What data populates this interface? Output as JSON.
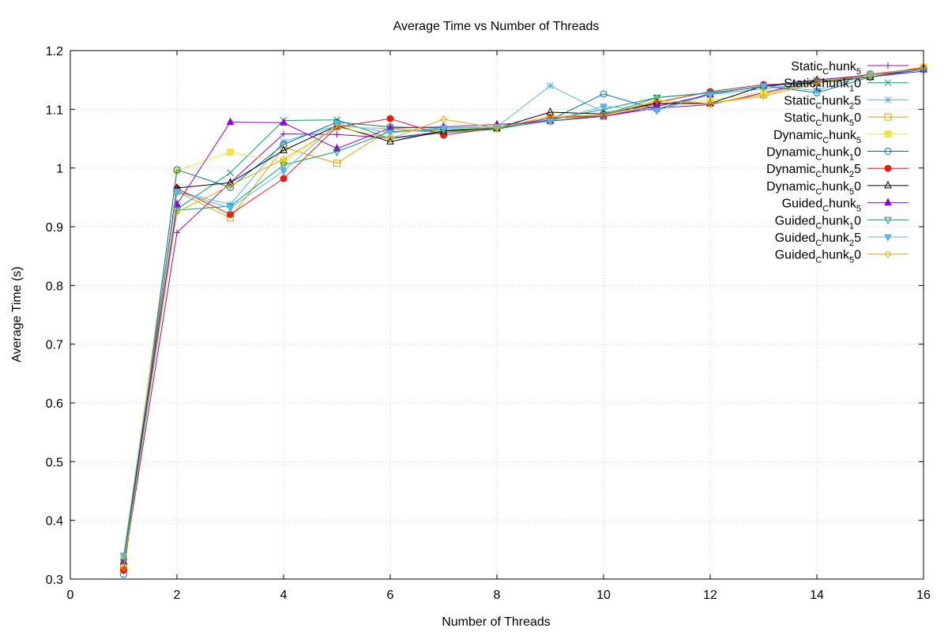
{
  "chart_data": {
    "type": "line",
    "title": "Average Time vs Number of Threads",
    "xlabel": "Number of Threads",
    "ylabel": "Average Time (s)",
    "xlim": [
      0,
      16
    ],
    "ylim": [
      0.3,
      1.2
    ],
    "xticks": [
      0,
      2,
      4,
      6,
      8,
      10,
      12,
      14,
      16
    ],
    "yticks": [
      0.3,
      0.4,
      0.5,
      0.6,
      0.7,
      0.8,
      0.9,
      1,
      1.1,
      1.2
    ],
    "grid": true,
    "legend_position": "top-right",
    "x": [
      1,
      2,
      3,
      4,
      5,
      6,
      7,
      8,
      9,
      10,
      11,
      12,
      13,
      14,
      15,
      16
    ],
    "series": [
      {
        "name": "Static_chunk_5",
        "legend_main": "Static",
        "legend_sub": "C",
        "legend_mid": "hunk",
        "legend_sub2": "5",
        "legend_tail": "",
        "color": "#9400d3",
        "marker": "plus",
        "values": [
          0.32,
          0.89,
          0.975,
          1.058,
          1.057,
          1.051,
          1.062,
          1.068,
          1.08,
          1.088,
          1.102,
          1.108,
          1.128,
          1.148,
          1.155,
          1.165
        ]
      },
      {
        "name": "Static_chunk_10",
        "legend_main": "Static",
        "legend_sub": "C",
        "legend_mid": "hunk",
        "legend_sub2": "1",
        "legend_tail": "0",
        "color": "#009e73",
        "marker": "x",
        "values": [
          0.33,
          0.93,
          0.992,
          1.081,
          1.082,
          1.05,
          1.06,
          1.066,
          1.082,
          1.1,
          1.12,
          1.128,
          1.138,
          1.15,
          1.158,
          1.168
        ]
      },
      {
        "name": "Static_chunk_25",
        "legend_main": "Static",
        "legend_sub": "C",
        "legend_mid": "hunk",
        "legend_sub2": "2",
        "legend_tail": "5",
        "color": "#56b4e9",
        "marker": "star",
        "values": [
          0.34,
          0.96,
          0.938,
          1.045,
          1.072,
          1.066,
          1.06,
          1.07,
          1.14,
          1.095,
          1.105,
          1.125,
          1.135,
          1.145,
          1.16,
          1.168
        ]
      },
      {
        "name": "Static_chunk_50",
        "legend_main": "Static",
        "legend_sub": "C",
        "legend_mid": "hunk",
        "legend_sub2": "5",
        "legend_tail": "0",
        "color": "#e69f00",
        "marker": "square",
        "values": [
          0.32,
          0.96,
          0.915,
          1.035,
          1.008,
          1.066,
          1.062,
          1.068,
          1.085,
          1.088,
          1.108,
          1.11,
          1.125,
          1.148,
          1.155,
          1.17
        ]
      },
      {
        "name": "Dynamic_chunk_5",
        "legend_main": "Dynamic",
        "legend_sub": "C",
        "legend_mid": "hunk",
        "legend_sub2": "5",
        "legend_tail": "",
        "color": "#f0e442",
        "marker": "square-filled",
        "values": [
          0.335,
          0.995,
          1.027,
          1.01,
          1.07,
          1.068,
          1.065,
          1.07,
          1.08,
          1.088,
          1.11,
          1.115,
          1.13,
          1.15,
          1.158,
          1.172
        ]
      },
      {
        "name": "Dynamic_chunk_10",
        "legend_main": "Dynamic",
        "legend_sub": "C",
        "legend_mid": "hunk",
        "legend_sub2": "1",
        "legend_tail": "0",
        "color": "#0072b2",
        "marker": "circle",
        "values": [
          0.308,
          0.997,
          0.967,
          1.04,
          1.078,
          1.07,
          1.068,
          1.07,
          1.082,
          1.126,
          1.1,
          1.127,
          1.14,
          1.128,
          1.155,
          1.168
        ]
      },
      {
        "name": "Dynamic_chunk_25",
        "legend_main": "Dynamic",
        "legend_sub": "C",
        "legend_mid": "hunk",
        "legend_sub2": "2",
        "legend_tail": "5",
        "color": "#e51e10",
        "marker": "circle-filled",
        "values": [
          0.315,
          0.965,
          0.921,
          0.982,
          1.07,
          1.084,
          1.056,
          1.068,
          1.085,
          1.09,
          1.112,
          1.13,
          1.142,
          1.145,
          1.16,
          1.17
        ]
      },
      {
        "name": "Dynamic_chunk_50",
        "legend_main": "Dynamic",
        "legend_sub": "C",
        "legend_mid": "hunk",
        "legend_sub2": "5",
        "legend_tail": "0",
        "color": "#000000",
        "marker": "triangle",
        "values": [
          0.33,
          0.966,
          0.975,
          1.03,
          1.072,
          1.045,
          1.063,
          1.068,
          1.095,
          1.092,
          1.11,
          1.11,
          1.14,
          1.145,
          1.155,
          1.168
        ]
      },
      {
        "name": "Guided_chunk_5",
        "legend_main": "Guided",
        "legend_sub": "C",
        "legend_mid": "hunk",
        "legend_sub2": "5",
        "legend_tail": "",
        "color": "#9400d3",
        "marker": "triangle-filled",
        "values": [
          0.33,
          0.938,
          1.078,
          1.077,
          1.033,
          1.068,
          1.07,
          1.074,
          1.08,
          1.088,
          1.105,
          1.125,
          1.14,
          1.15,
          1.158,
          1.168
        ]
      },
      {
        "name": "Guided_chunk_10",
        "legend_main": "Guided",
        "legend_sub": "C",
        "legend_mid": "hunk",
        "legend_sub2": "1",
        "legend_tail": "0",
        "color": "#009e73",
        "marker": "triangle-down",
        "values": [
          0.33,
          0.928,
          0.935,
          1.005,
          1.028,
          1.062,
          1.065,
          1.068,
          1.08,
          1.09,
          1.12,
          1.128,
          1.138,
          1.148,
          1.155,
          1.168
        ]
      },
      {
        "name": "Guided_chunk_25",
        "legend_main": "Guided",
        "legend_sub": "C",
        "legend_mid": "hunk",
        "legend_sub2": "2",
        "legend_tail": "5",
        "color": "#56b4e9",
        "marker": "triangle-down-filled",
        "values": [
          0.34,
          0.96,
          0.932,
          0.995,
          1.075,
          1.06,
          1.068,
          1.07,
          1.08,
          1.105,
          1.098,
          1.125,
          1.14,
          1.132,
          1.16,
          1.168
        ]
      },
      {
        "name": "Guided_chunk_50",
        "legend_main": "Guided",
        "legend_sub": "C",
        "legend_mid": "hunk",
        "legend_sub2": "5",
        "legend_tail": "0",
        "color": "#e6ab02",
        "marker": "diamond",
        "values": [
          0.32,
          0.925,
          0.97,
          1.015,
          1.07,
          1.05,
          1.083,
          1.068,
          1.088,
          1.09,
          1.115,
          1.11,
          1.122,
          1.145,
          1.158,
          1.172
        ]
      }
    ]
  }
}
